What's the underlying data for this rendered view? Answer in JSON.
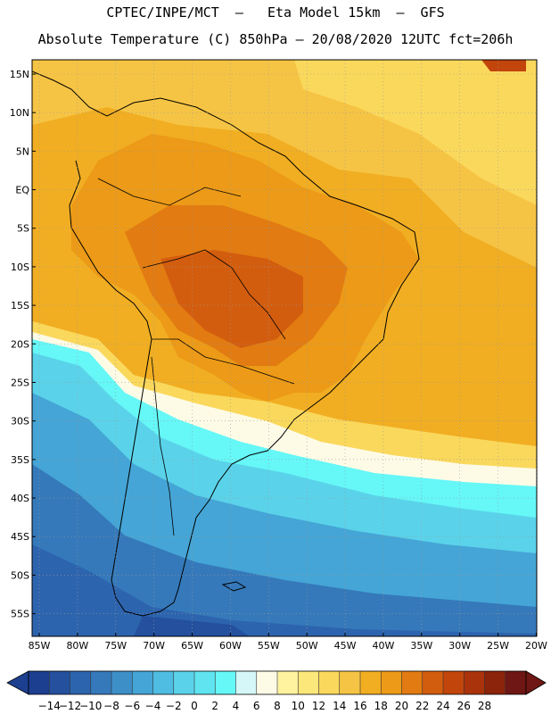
{
  "header": {
    "line1": "CPTEC/INPE/MCT  –   Eta Model 15km  –  GFS",
    "line2": "Absolute Temperature (C) 850hPa – 20/08/2020 12UTC fct=206h"
  },
  "map": {
    "variable": "Absolute Temperature (C) 850hPa",
    "lat_labels": [
      "15N",
      "10N",
      "5N",
      "EQ",
      "5S",
      "10S",
      "15S",
      "20S",
      "25S",
      "30S",
      "35S",
      "40S",
      "45S",
      "50S",
      "55S"
    ],
    "lon_labels": [
      "85W",
      "80W",
      "75W",
      "70W",
      "65W",
      "60W",
      "55W",
      "50W",
      "45W",
      "40W",
      "35W",
      "30W",
      "25W",
      "20W"
    ]
  },
  "colorbar": {
    "labels": [
      "-14",
      "-12",
      "-10",
      "-8",
      "-6",
      "-4",
      "-2",
      "0",
      "2",
      "4",
      "6",
      "8",
      "10",
      "12",
      "14",
      "16",
      "18",
      "20",
      "22",
      "24",
      "26",
      "28"
    ],
    "colors": [
      "#1d3f90",
      "#24509e",
      "#2d64ae",
      "#3579ba",
      "#3d8fc8",
      "#45a5d6",
      "#4ebde1",
      "#5ad3ea",
      "#5fe4f0",
      "#66f7f7",
      "#d6f7f7",
      "#fdfbe6",
      "#fff3a0",
      "#fce77a",
      "#fad85c",
      "#f6c444",
      "#f1ae22",
      "#ec9a17",
      "#e27b12",
      "#d35d0e",
      "#c2450c",
      "#ab330c",
      "#8c230b",
      "#6f1714"
    ],
    "under_color": "#1d3f90",
    "over_color": "#6f1714"
  }
}
